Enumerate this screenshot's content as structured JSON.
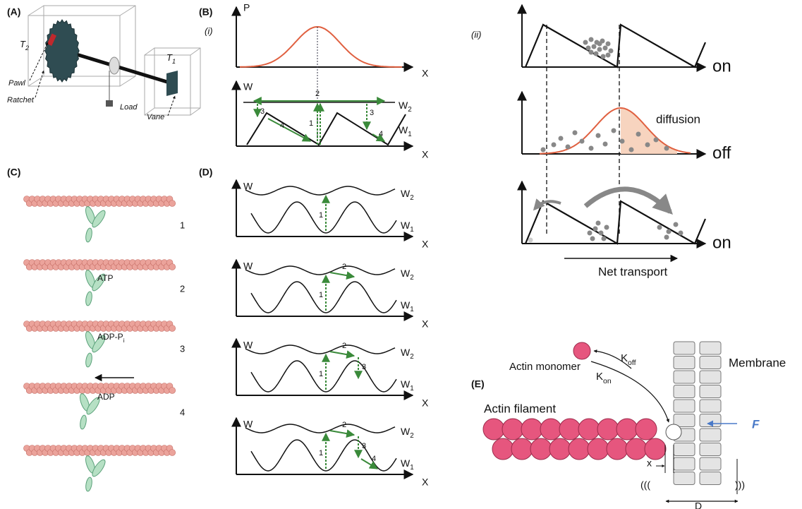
{
  "panel_a": {
    "label": "(A)",
    "t2": {
      "main": "T",
      "sub": "2"
    },
    "t1": {
      "main": "T",
      "sub": "1"
    },
    "pawl": "Pawl",
    "ratchet": "Ratchet",
    "load": "Load",
    "vane": "Vane"
  },
  "panel_b": {
    "label": "(B)",
    "i": {
      "label": "(i)",
      "p_axis": "P",
      "x_axis": "X",
      "w_axis": "W",
      "w2": {
        "main": "W",
        "sub": "2"
      },
      "w1": {
        "main": "W",
        "sub": "1"
      },
      "x_axis_2": "X",
      "steps": [
        "2",
        "3",
        "4",
        "1",
        "3",
        "4"
      ]
    },
    "ii": {
      "label": "(ii)",
      "states": [
        "on",
        "off",
        "on"
      ],
      "diffusion": "diffusion",
      "net_transport": "Net transport"
    }
  },
  "panel_c": {
    "label": "(C)",
    "steps": [
      {
        "number": "1"
      },
      {
        "number": "2",
        "nucleotide": "ATP"
      },
      {
        "number": "3",
        "nucleotide": {
          "main": "ADP-P",
          "sub": "i"
        }
      },
      {
        "number": "4",
        "nucleotide": "ADP"
      }
    ]
  },
  "panel_d": {
    "label": "(D)",
    "plots": [
      {
        "w_axis": "W",
        "w2": {
          "main": "W",
          "sub": "2"
        },
        "w1": {
          "main": "W",
          "sub": "1"
        },
        "x_axis": "X",
        "steps": [
          "1"
        ]
      },
      {
        "w_axis": "W",
        "w2": {
          "main": "W",
          "sub": "2"
        },
        "w1": {
          "main": "W",
          "sub": "1"
        },
        "x_axis": "X",
        "steps": [
          "1",
          "2"
        ]
      },
      {
        "w_axis": "W",
        "w2": {
          "main": "W",
          "sub": "2"
        },
        "w1": {
          "main": "W",
          "sub": "1"
        },
        "x_axis": "X",
        "steps": [
          "1",
          "2",
          "3"
        ]
      },
      {
        "w_axis": "W",
        "w2": {
          "main": "W",
          "sub": "2"
        },
        "w1": {
          "main": "W",
          "sub": "1"
        },
        "x_axis": "X",
        "steps": [
          "1",
          "2",
          "3",
          "4"
        ]
      }
    ]
  },
  "panel_e": {
    "label": "(E)",
    "actin_monomer": "Actin monomer",
    "k_off": {
      "main": "K",
      "sub": "off"
    },
    "k_on": {
      "main": "K",
      "sub": "on"
    },
    "actin_filament": "Actin filament",
    "membrane": "Membrane",
    "force": "F",
    "x": "x",
    "d": "D",
    "waves_left": "(((",
    "waves_right": ")))"
  }
}
